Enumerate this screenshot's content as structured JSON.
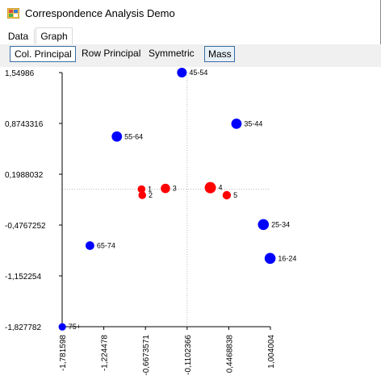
{
  "window": {
    "title": "Correspondence Analysis Demo",
    "icon": "app-grid-icon"
  },
  "tabs": [
    {
      "label": "Data",
      "active": false
    },
    {
      "label": "Graph",
      "active": true
    }
  ],
  "toolbar": {
    "col_principal": "Col. Principal",
    "row_principal": "Row Principal",
    "symmetric": "Symmetric",
    "mass": "Mass"
  },
  "chart_data": {
    "type": "scatter",
    "x_ticks": [
      "-1,781598",
      "-1,224478",
      "-0,6673571",
      "-0,1102366",
      "0,4468838",
      "1,004004"
    ],
    "y_ticks": [
      "1,54986",
      "0,8743316",
      "0,1988032",
      "-0,4767252",
      "-1,152254",
      "-1,827782"
    ],
    "xlim": [
      -1.781598,
      1.004004
    ],
    "ylim": [
      -1.827782,
      1.54986
    ],
    "grid": false,
    "colors": {
      "columns": "#0000ff",
      "rows": "#ff0000",
      "axis": "#000000",
      "crosshair": "#bbbbbb"
    },
    "series": [
      {
        "kind": "columns",
        "points": [
          {
            "label": "45-54",
            "x": -0.18,
            "y": 1.55,
            "mass": 0.75
          },
          {
            "label": "35-44",
            "x": 0.55,
            "y": 0.87,
            "mass": 0.85
          },
          {
            "label": "55-64",
            "x": -1.05,
            "y": 0.7,
            "mass": 0.85
          },
          {
            "label": "25-34",
            "x": 0.91,
            "y": -0.47,
            "mass": 0.95
          },
          {
            "label": "16-24",
            "x": 1.0,
            "y": -0.92,
            "mass": 0.95
          },
          {
            "label": "65-74",
            "x": -1.41,
            "y": -0.75,
            "mass": 0.6
          },
          {
            "label": "75+",
            "x": -1.78,
            "y": -1.83,
            "mass": 0.4
          }
        ]
      },
      {
        "kind": "rows",
        "points": [
          {
            "label": "1",
            "x": -0.72,
            "y": 0.0,
            "mass": 0.45
          },
          {
            "label": "2",
            "x": -0.71,
            "y": -0.08,
            "mass": 0.45
          },
          {
            "label": "3",
            "x": -0.4,
            "y": 0.01,
            "mass": 0.7
          },
          {
            "label": "4",
            "x": 0.2,
            "y": 0.02,
            "mass": 1.0
          },
          {
            "label": "5",
            "x": 0.42,
            "y": -0.08,
            "mass": 0.55
          }
        ]
      }
    ],
    "origin": {
      "x": -0.1102366,
      "y": 0.0
    }
  }
}
